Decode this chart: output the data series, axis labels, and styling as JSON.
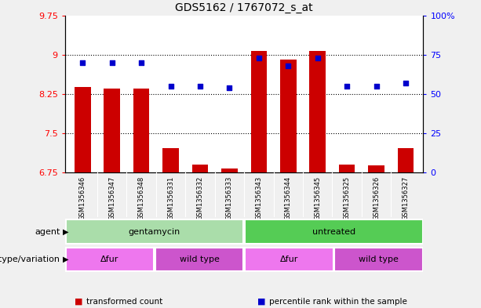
{
  "title": "GDS5162 / 1767072_s_at",
  "samples": [
    "GSM1356346",
    "GSM1356347",
    "GSM1356348",
    "GSM1356331",
    "GSM1356332",
    "GSM1356333",
    "GSM1356343",
    "GSM1356344",
    "GSM1356345",
    "GSM1356325",
    "GSM1356326",
    "GSM1356327"
  ],
  "transformed_count": [
    8.38,
    8.35,
    8.35,
    7.22,
    6.9,
    6.83,
    9.07,
    8.9,
    9.07,
    6.9,
    6.88,
    7.22
  ],
  "percentile_rank": [
    70,
    70,
    70,
    55,
    55,
    54,
    73,
    68,
    73,
    55,
    55,
    57
  ],
  "ylim_left": [
    6.75,
    9.75
  ],
  "ylim_right": [
    0,
    100
  ],
  "yticks_left": [
    6.75,
    7.5,
    8.25,
    9.0,
    9.75
  ],
  "yticks_right": [
    0,
    25,
    50,
    75,
    100
  ],
  "ytick_labels_left": [
    "6.75",
    "7.5",
    "8.25",
    "9",
    "9.75"
  ],
  "ytick_labels_right": [
    "0",
    "25",
    "50",
    "75",
    "100%"
  ],
  "bar_color": "#cc0000",
  "dot_color": "#0000cc",
  "agent_row": {
    "label": "agent",
    "groups": [
      {
        "text": "gentamycin",
        "start": 0,
        "end": 5,
        "color": "#aaddaa"
      },
      {
        "text": "untreated",
        "start": 6,
        "end": 11,
        "color": "#55cc55"
      }
    ]
  },
  "genotype_row": {
    "label": "genotype/variation",
    "groups": [
      {
        "text": "Δfur",
        "start": 0,
        "end": 2,
        "color": "#ee77ee"
      },
      {
        "text": "wild type",
        "start": 3,
        "end": 5,
        "color": "#cc55cc"
      },
      {
        "text": "Δfur",
        "start": 6,
        "end": 8,
        "color": "#ee77ee"
      },
      {
        "text": "wild type",
        "start": 9,
        "end": 11,
        "color": "#cc55cc"
      }
    ]
  },
  "legend_items": [
    {
      "label": "transformed count",
      "color": "#cc0000"
    },
    {
      "label": "percentile rank within the sample",
      "color": "#0000cc"
    }
  ],
  "bar_width": 0.55,
  "fig_bg": "#f0f0f0",
  "plot_bg": "#ffffff",
  "sample_band_bg": "#c8c8c8",
  "grid_lines": [
    7.5,
    8.25,
    9.0
  ]
}
